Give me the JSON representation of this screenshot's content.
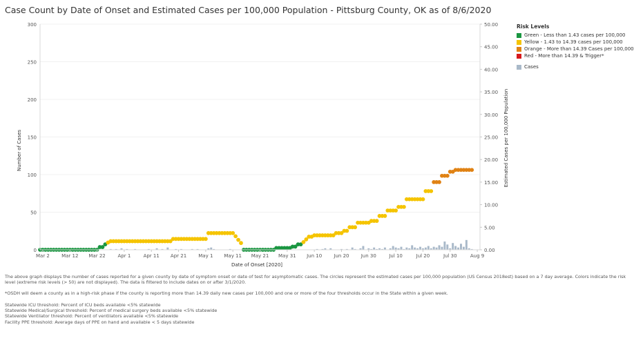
{
  "title": "Case Count by Date of Onset and Estimated Cases per 100,000 Population - Pittsburg County, OK as of 8/6/2020",
  "legend": {
    "title": "Risk Levels",
    "items": [
      {
        "label": "Green - Less than 1.43 cases per 100,000",
        "color": "#1a9641"
      },
      {
        "label": "Yellow - 1.43 to 14.39 cases per 100,000",
        "color": "#f5c400"
      },
      {
        "label": "Orange - More than 14.39 Cases per 100,000",
        "color": "#e08214"
      },
      {
        "label": "Red - More than 14.39 & Trigger*",
        "color": "#d7191c"
      }
    ],
    "cases_label": "Cases",
    "cases_color": "#a9b9c9"
  },
  "notes": {
    "description": "The above graph displays the number of cases reported for a given county by date of symptom onset or date of test for asymptomatic cases. The circles represent the estimated cases per 100,000 population (US Census 2018est) based on a 7 day average. Colors indicate the risk level (extreme risk levels (> 50) are not displayed). The data is filtered to include dates on or after 3/1/2020.",
    "trigger": "*OSDH will deem a county as in a high-risk phase if the county is reporting more than 14.39 daily new cases per 100,000 and one or more of the four thresholds occur in the State within a given week.",
    "thresholds": [
      "Statewide ICU threshold: Percent of ICU beds available <5% statewide",
      "Statewide Medical/Surgical threshold: Percent of medical surgery beds available <5% statewide",
      "Statewide Ventilator threshold: Percent of ventilators available <5% statewide",
      "Facility PPE threshold: Average days of PPE on hand and available < 5 days statewide"
    ]
  },
  "chart_data": {
    "type": "bar+scatter",
    "title": "Case Count by Date of Onset and Estimated Cases per 100,000 Population - Pittsburg County, OK as of 8/6/2020",
    "xlabel": "Date of Onset [2020]",
    "ylabel": "Number of Cases",
    "y2label": "Estimated Cases per 100,000 Population",
    "xlim": [
      0,
      162
    ],
    "ylim": [
      0,
      300
    ],
    "y2lim": [
      0,
      50
    ],
    "x_ticks": [
      {
        "day": 1,
        "label": "Mar 2"
      },
      {
        "day": 11,
        "label": "Mar 12"
      },
      {
        "day": 21,
        "label": "Mar 22"
      },
      {
        "day": 31,
        "label": "Apr 1"
      },
      {
        "day": 41,
        "label": "Apr 11"
      },
      {
        "day": 51,
        "label": "Apr 21"
      },
      {
        "day": 61,
        "label": "May 1"
      },
      {
        "day": 71,
        "label": "May 11"
      },
      {
        "day": 81,
        "label": "May 21"
      },
      {
        "day": 91,
        "label": "May 31"
      },
      {
        "day": 101,
        "label": "Jun 10"
      },
      {
        "day": 111,
        "label": "Jun 20"
      },
      {
        "day": 121,
        "label": "Jun 30"
      },
      {
        "day": 131,
        "label": "Jul 10"
      },
      {
        "day": 141,
        "label": "Jul 20"
      },
      {
        "day": 151,
        "label": "Jul 30"
      },
      {
        "day": 161,
        "label": "Aug 9"
      }
    ],
    "y_ticks": [
      0,
      50,
      100,
      150,
      200,
      250,
      300
    ],
    "y_tick_labels": [
      "0",
      "50",
      "100",
      "150",
      "200",
      "250",
      "300"
    ],
    "y2_ticks": [
      0,
      5,
      10,
      15,
      20,
      25,
      30,
      35,
      40,
      45,
      50
    ],
    "y2_tick_labels": [
      "0.00",
      "5.00",
      "10.00",
      "15.00",
      "20.00",
      "25.00",
      "30.00",
      "35.00",
      "40.00",
      "45.00",
      "50.00"
    ],
    "cases_bars": [
      [
        26,
        1
      ],
      [
        28,
        1
      ],
      [
        30,
        2
      ],
      [
        32,
        1
      ],
      [
        35,
        1
      ],
      [
        40,
        1
      ],
      [
        43,
        2
      ],
      [
        45,
        1
      ],
      [
        47,
        3
      ],
      [
        50,
        1
      ],
      [
        52,
        1
      ],
      [
        56,
        1
      ],
      [
        58,
        1
      ],
      [
        62,
        2
      ],
      [
        63,
        3
      ],
      [
        64,
        1
      ],
      [
        70,
        1
      ],
      [
        81,
        1
      ],
      [
        89,
        1
      ],
      [
        102,
        1
      ],
      [
        104,
        1
      ],
      [
        105,
        2
      ],
      [
        107,
        2
      ],
      [
        111,
        1
      ],
      [
        113,
        1
      ],
      [
        115,
        3
      ],
      [
        116,
        1
      ],
      [
        118,
        2
      ],
      [
        119,
        5
      ],
      [
        121,
        2
      ],
      [
        122,
        1
      ],
      [
        123,
        3
      ],
      [
        124,
        1
      ],
      [
        125,
        2
      ],
      [
        126,
        1
      ],
      [
        127,
        3
      ],
      [
        129,
        2
      ],
      [
        130,
        5
      ],
      [
        131,
        3
      ],
      [
        132,
        2
      ],
      [
        133,
        4
      ],
      [
        134,
        1
      ],
      [
        135,
        3
      ],
      [
        136,
        2
      ],
      [
        137,
        6
      ],
      [
        138,
        3
      ],
      [
        139,
        2
      ],
      [
        140,
        4
      ],
      [
        141,
        2
      ],
      [
        142,
        3
      ],
      [
        143,
        5
      ],
      [
        144,
        2
      ],
      [
        145,
        4
      ],
      [
        146,
        3
      ],
      [
        147,
        6
      ],
      [
        148,
        4
      ],
      [
        149,
        11
      ],
      [
        150,
        7
      ],
      [
        151,
        2
      ],
      [
        152,
        9
      ],
      [
        153,
        5
      ],
      [
        154,
        3
      ],
      [
        155,
        8
      ],
      [
        156,
        4
      ],
      [
        157,
        13
      ],
      [
        158,
        2
      ],
      [
        159,
        1
      ]
    ],
    "rate_segments": [
      {
        "from": 0,
        "to": 21,
        "value": 0.0,
        "level": "green"
      },
      {
        "from": 22,
        "to": 23,
        "value": 0.6,
        "level": "green"
      },
      {
        "from": 24,
        "to": 24,
        "value": 1.2,
        "level": "green"
      },
      {
        "from": 25,
        "to": 25,
        "value": 1.6,
        "level": "yellow"
      },
      {
        "from": 26,
        "to": 48,
        "value": 1.9,
        "level": "yellow"
      },
      {
        "from": 49,
        "to": 61,
        "value": 2.4,
        "level": "yellow"
      },
      {
        "from": 62,
        "to": 71,
        "value": 3.7,
        "level": "yellow"
      },
      {
        "from": 72,
        "to": 72,
        "value": 3.0,
        "level": "yellow"
      },
      {
        "from": 73,
        "to": 73,
        "value": 2.2,
        "level": "yellow"
      },
      {
        "from": 74,
        "to": 74,
        "value": 1.5,
        "level": "yellow"
      },
      {
        "from": 75,
        "to": 86,
        "value": 0.0,
        "level": "green"
      },
      {
        "from": 87,
        "to": 92,
        "value": 0.4,
        "level": "green"
      },
      {
        "from": 93,
        "to": 94,
        "value": 0.7,
        "level": "green"
      },
      {
        "from": 95,
        "to": 96,
        "value": 1.2,
        "level": "green"
      },
      {
        "from": 97,
        "to": 97,
        "value": 1.7,
        "level": "yellow"
      },
      {
        "from": 98,
        "to": 98,
        "value": 2.3,
        "level": "yellow"
      },
      {
        "from": 99,
        "to": 100,
        "value": 2.9,
        "level": "yellow"
      },
      {
        "from": 101,
        "to": 108,
        "value": 3.2,
        "level": "yellow"
      },
      {
        "from": 109,
        "to": 111,
        "value": 3.7,
        "level": "yellow"
      },
      {
        "from": 112,
        "to": 113,
        "value": 4.2,
        "level": "yellow"
      },
      {
        "from": 114,
        "to": 116,
        "value": 5.0,
        "level": "yellow"
      },
      {
        "from": 117,
        "to": 121,
        "value": 6.0,
        "level": "yellow"
      },
      {
        "from": 122,
        "to": 124,
        "value": 6.4,
        "level": "yellow"
      },
      {
        "from": 125,
        "to": 127,
        "value": 7.5,
        "level": "yellow"
      },
      {
        "from": 128,
        "to": 131,
        "value": 8.7,
        "level": "yellow"
      },
      {
        "from": 132,
        "to": 134,
        "value": 9.5,
        "level": "yellow"
      },
      {
        "from": 135,
        "to": 141,
        "value": 11.2,
        "level": "yellow"
      },
      {
        "from": 142,
        "to": 144,
        "value": 13.0,
        "level": "yellow"
      },
      {
        "from": 145,
        "to": 147,
        "value": 15.0,
        "level": "orange"
      },
      {
        "from": 148,
        "to": 150,
        "value": 16.4,
        "level": "orange"
      },
      {
        "from": 151,
        "to": 152,
        "value": 17.3,
        "level": "orange"
      },
      {
        "from": 153,
        "to": 159,
        "value": 17.7,
        "level": "orange"
      }
    ]
  }
}
